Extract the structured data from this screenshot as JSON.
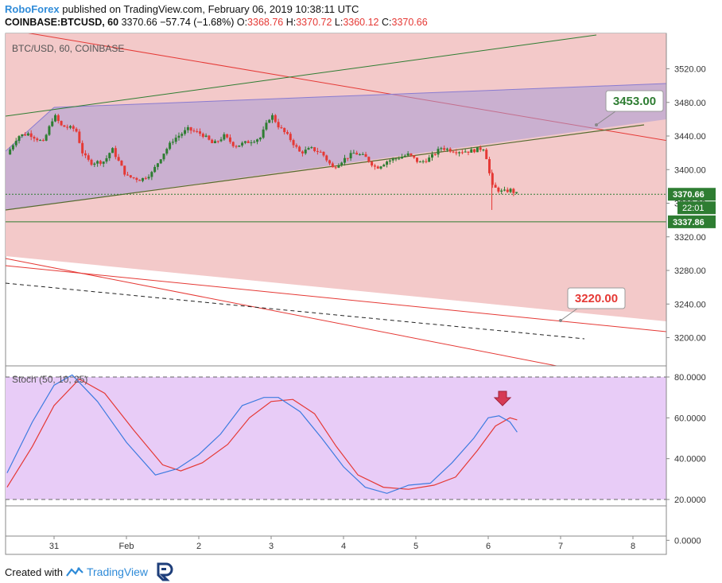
{
  "header": {
    "brand": "RoboForex",
    "published": "published on TradingView.com, February 06, 2019 10:38:11 UTC",
    "symbol": "COINBASE:BTCUSD, 60",
    "last": "3370.66",
    "change": "−57.74 (−1.68%)",
    "o_label": "O:",
    "o_val": "3368.76",
    "h_label": "H:",
    "h_val": "3370.72",
    "l_label": "L:",
    "l_val": "3360.12",
    "c_label": "C:",
    "c_val": "3370.66"
  },
  "footer": {
    "created_with": "Created with",
    "tradingview": "TradingView"
  },
  "colors": {
    "up": "#2e7d32",
    "down": "#e53935",
    "price_badge": "#2e7d32",
    "stoch_k": "#3d7be0",
    "stoch_d": "#e53935"
  },
  "chart_data": {
    "type": "candlestick",
    "title": "BTC/USD, 60, COINBASE",
    "price_axis": {
      "range": [
        3180,
        3540
      ],
      "ticks": [
        3200,
        3240,
        3280,
        3320,
        3360,
        3400,
        3440,
        3480,
        3520
      ],
      "tick_labels": [
        "3200.00",
        "3240.00",
        "3280.00",
        "3320.00",
        "3360.00",
        "3400.00",
        "3440.00",
        "3480.00",
        "3520.00"
      ]
    },
    "time_axis": {
      "labels": [
        "31",
        "Feb",
        "2",
        "3",
        "4",
        "5",
        "6",
        "7",
        "8"
      ]
    },
    "price_labels": {
      "last": "3370.66",
      "countdown": "22:01",
      "support": "3337.86"
    },
    "callouts": [
      {
        "text": "3453.00",
        "value": 3453
      },
      {
        "text": "3220.00",
        "value": 3220
      }
    ],
    "close_path": [
      {
        "day": -0.65,
        "price": 3418
      },
      {
        "day": -0.5,
        "price": 3440
      },
      {
        "day": -0.35,
        "price": 3443
      },
      {
        "day": -0.15,
        "price": 3432
      },
      {
        "day": 0.0,
        "price": 3465
      },
      {
        "day": 0.1,
        "price": 3452
      },
      {
        "day": 0.3,
        "price": 3448
      },
      {
        "day": 0.4,
        "price": 3418
      },
      {
        "day": 0.5,
        "price": 3408
      },
      {
        "day": 0.7,
        "price": 3410
      },
      {
        "day": 0.8,
        "price": 3425
      },
      {
        "day": 1.0,
        "price": 3392
      },
      {
        "day": 1.2,
        "price": 3388
      },
      {
        "day": 1.35,
        "price": 3396
      },
      {
        "day": 1.5,
        "price": 3418
      },
      {
        "day": 1.65,
        "price": 3436
      },
      {
        "day": 1.85,
        "price": 3448
      },
      {
        "day": 2.05,
        "price": 3442
      },
      {
        "day": 2.2,
        "price": 3430
      },
      {
        "day": 2.35,
        "price": 3440
      },
      {
        "day": 2.5,
        "price": 3428
      },
      {
        "day": 2.65,
        "price": 3432
      },
      {
        "day": 2.85,
        "price": 3438
      },
      {
        "day": 3.0,
        "price": 3466
      },
      {
        "day": 3.1,
        "price": 3452
      },
      {
        "day": 3.25,
        "price": 3438
      },
      {
        "day": 3.4,
        "price": 3420
      },
      {
        "day": 3.55,
        "price": 3425
      },
      {
        "day": 3.7,
        "price": 3420
      },
      {
        "day": 3.85,
        "price": 3402
      },
      {
        "day": 4.0,
        "price": 3412
      },
      {
        "day": 4.15,
        "price": 3420
      },
      {
        "day": 4.3,
        "price": 3415
      },
      {
        "day": 4.45,
        "price": 3402
      },
      {
        "day": 4.6,
        "price": 3410
      },
      {
        "day": 4.75,
        "price": 3414
      },
      {
        "day": 4.9,
        "price": 3418
      },
      {
        "day": 5.05,
        "price": 3408
      },
      {
        "day": 5.2,
        "price": 3414
      },
      {
        "day": 5.35,
        "price": 3426
      },
      {
        "day": 5.55,
        "price": 3422
      },
      {
        "day": 5.75,
        "price": 3422
      },
      {
        "day": 5.95,
        "price": 3426
      },
      {
        "day": 6.05,
        "price": 3380
      },
      {
        "day": 6.2,
        "price": 3373
      },
      {
        "day": 6.3,
        "price": 3376
      },
      {
        "day": 6.4,
        "price": 3370.66
      }
    ],
    "stochastic": {
      "title": "Stoch (50, 10, 25)",
      "range": [
        -5,
        85
      ],
      "ticks": [
        0,
        20,
        40,
        60,
        80
      ],
      "tick_labels": [
        "0.0000",
        "20.0000",
        "40.0000",
        "60.0000",
        "80.0000"
      ],
      "levels": [
        20,
        80
      ],
      "k": [
        {
          "day": -0.65,
          "value": 33
        },
        {
          "day": -0.3,
          "value": 58
        },
        {
          "day": 0.0,
          "value": 76
        },
        {
          "day": 0.25,
          "value": 81
        },
        {
          "day": 0.6,
          "value": 68
        },
        {
          "day": 1.0,
          "value": 48
        },
        {
          "day": 1.4,
          "value": 32
        },
        {
          "day": 1.7,
          "value": 35
        },
        {
          "day": 2.0,
          "value": 42
        },
        {
          "day": 2.3,
          "value": 52
        },
        {
          "day": 2.6,
          "value": 66
        },
        {
          "day": 2.9,
          "value": 70
        },
        {
          "day": 3.1,
          "value": 70
        },
        {
          "day": 3.4,
          "value": 63
        },
        {
          "day": 3.7,
          "value": 50
        },
        {
          "day": 4.0,
          "value": 36
        },
        {
          "day": 4.3,
          "value": 26
        },
        {
          "day": 4.6,
          "value": 23
        },
        {
          "day": 4.9,
          "value": 27
        },
        {
          "day": 5.2,
          "value": 28
        },
        {
          "day": 5.5,
          "value": 38
        },
        {
          "day": 5.8,
          "value": 50
        },
        {
          "day": 6.0,
          "value": 60
        },
        {
          "day": 6.15,
          "value": 61
        },
        {
          "day": 6.3,
          "value": 58
        },
        {
          "day": 6.4,
          "value": 53
        }
      ],
      "d": [
        {
          "day": -0.65,
          "value": 26
        },
        {
          "day": -0.3,
          "value": 46
        },
        {
          "day": 0.0,
          "value": 66
        },
        {
          "day": 0.35,
          "value": 79
        },
        {
          "day": 0.7,
          "value": 72
        },
        {
          "day": 1.1,
          "value": 54
        },
        {
          "day": 1.5,
          "value": 37
        },
        {
          "day": 1.75,
          "value": 34
        },
        {
          "day": 2.05,
          "value": 38
        },
        {
          "day": 2.4,
          "value": 47
        },
        {
          "day": 2.7,
          "value": 60
        },
        {
          "day": 3.0,
          "value": 68
        },
        {
          "day": 3.3,
          "value": 69
        },
        {
          "day": 3.6,
          "value": 62
        },
        {
          "day": 3.9,
          "value": 46
        },
        {
          "day": 4.2,
          "value": 32
        },
        {
          "day": 4.55,
          "value": 26
        },
        {
          "day": 4.9,
          "value": 25
        },
        {
          "day": 5.25,
          "value": 27
        },
        {
          "day": 5.55,
          "value": 31
        },
        {
          "day": 5.85,
          "value": 44
        },
        {
          "day": 6.1,
          "value": 56
        },
        {
          "day": 6.3,
          "value": 60
        },
        {
          "day": 6.4,
          "value": 59
        }
      ]
    }
  }
}
